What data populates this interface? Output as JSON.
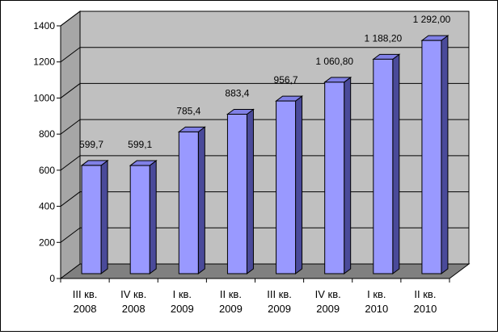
{
  "chart_data": {
    "type": "bar",
    "categories": [
      [
        "III кв.",
        "2008"
      ],
      [
        "IV кв.",
        "2008"
      ],
      [
        "I кв.",
        "2009"
      ],
      [
        "II кв.",
        "2009"
      ],
      [
        "III кв.",
        "2009"
      ],
      [
        "IV кв.",
        "2009"
      ],
      [
        "I кв.",
        "2010"
      ],
      [
        "II кв.",
        "2010"
      ]
    ],
    "values": [
      599.7,
      599.1,
      785.4,
      883.4,
      956.7,
      1060.8,
      1188.2,
      1292.0
    ],
    "data_labels": [
      "599,7",
      "599,1",
      "785,4",
      "883,4",
      "956,7",
      "1 060,80",
      "1 188,20",
      "1 292,00"
    ],
    "y_ticks": [
      "0",
      "200",
      "400",
      "600",
      "800",
      "1000",
      "1200",
      "1400"
    ],
    "ylim": [
      0,
      1400
    ],
    "grid": true,
    "legend": "none",
    "style": "3d-column",
    "colors": {
      "bar_front": "#9999ff",
      "bar_top": "#8080e6",
      "bar_side": "#4a4a9a",
      "wall": "#c0c0c0",
      "floor": "#808080"
    }
  }
}
